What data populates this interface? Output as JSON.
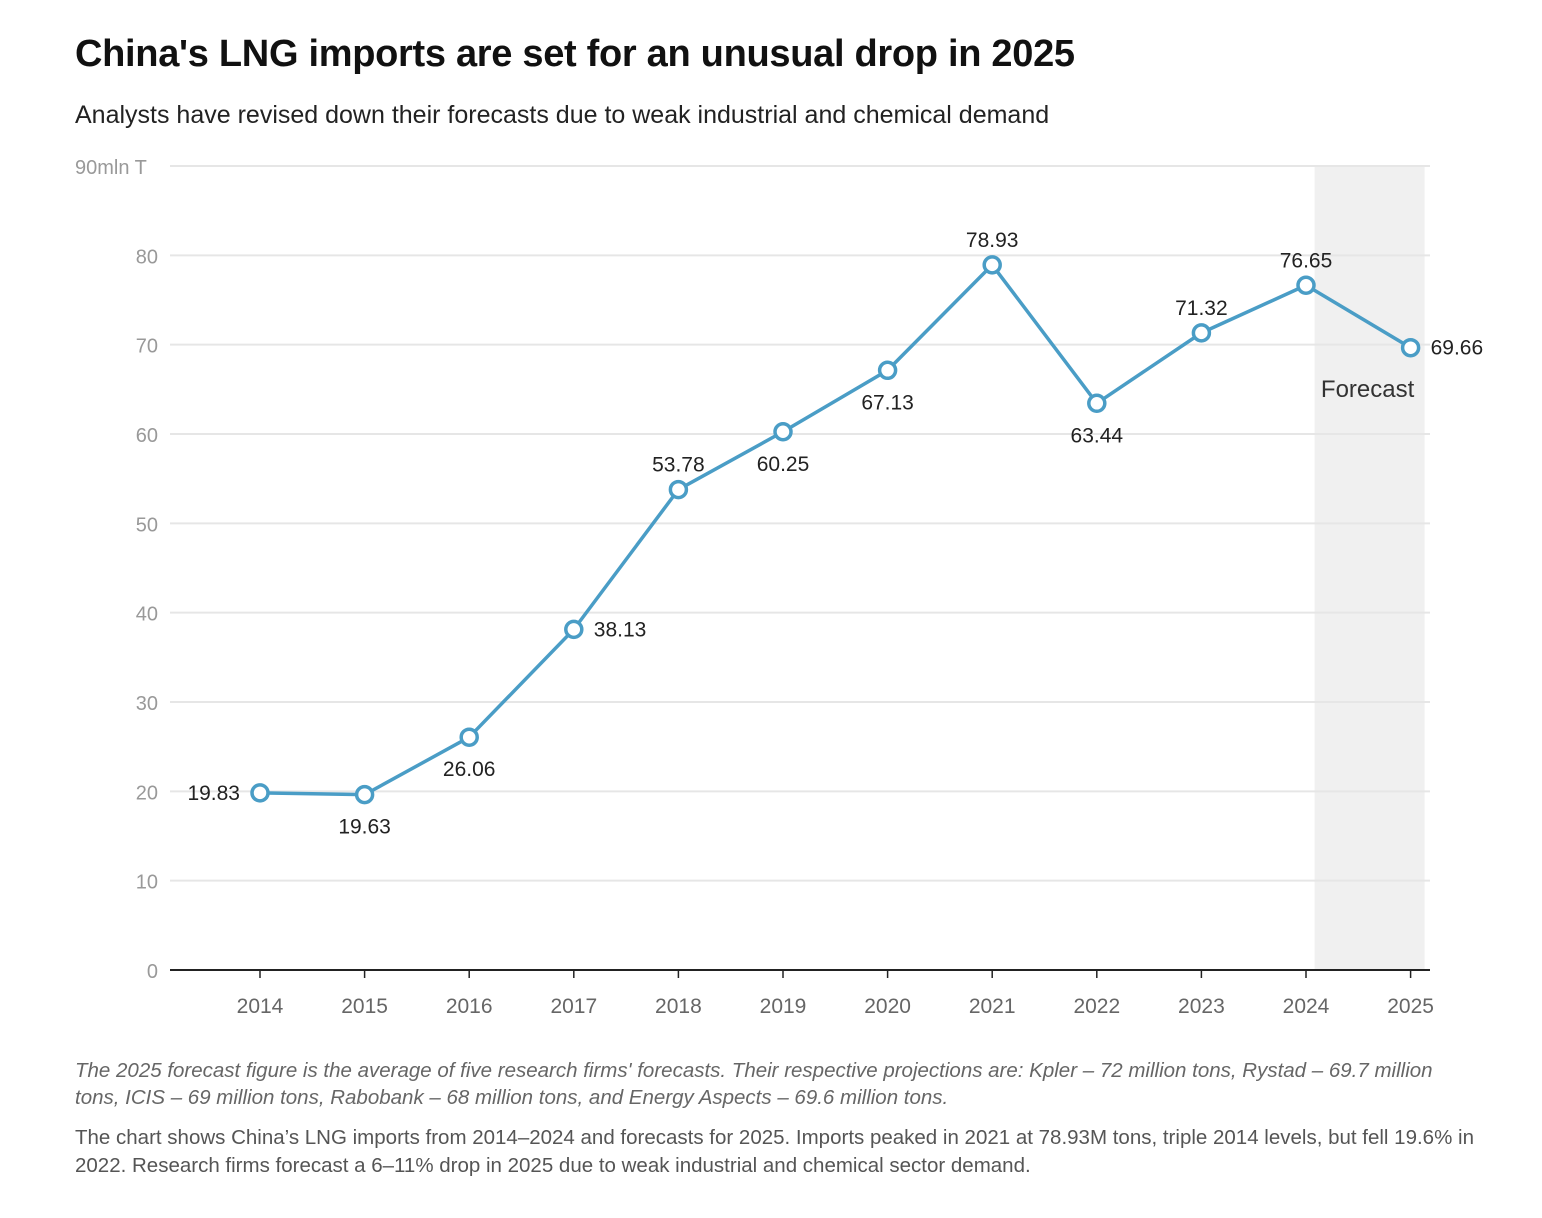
{
  "header": {
    "title": "China's LNG imports are set for an unusual drop in 2025",
    "subtitle": "Analysts have revised down their forecasts due to weak industrial and chemical demand"
  },
  "footer": {
    "note": "The 2025 forecast figure is the average of five research firms' forecasts. Their respective projections are: Kpler – 72 million tons, Rystad – 69.7 million tons, ICIS – 69 million tons, Rabobank – 68 million tons, and Energy Aspects – 69.6 million tons.",
    "description": "The chart shows China’s LNG imports from 2014–2024 and forecasts for 2025. Imports peaked in 2021 at 78.93M tons, triple 2014 levels, but fell 19.6% in 2022. Research firms forecast a 6–11% drop in 2025 due to weak industrial and chemical sector demand."
  },
  "chart_data": {
    "type": "line",
    "title": "China's LNG imports are set for an unusual drop in 2025",
    "subtitle": "Analysts have revised down their forecasts due to weak industrial and chemical demand",
    "ylabel": "",
    "y_top_tick_label": "90mln T",
    "y_ticks": [
      0,
      10,
      20,
      30,
      40,
      50,
      60,
      70,
      80,
      90
    ],
    "ylim": [
      0,
      90
    ],
    "x": [
      "2014",
      "2015",
      "2016",
      "2017",
      "2018",
      "2019",
      "2020",
      "2021",
      "2022",
      "2023",
      "2024",
      "2025"
    ],
    "series": [
      {
        "values": [
          19.83,
          19.63,
          26.06,
          38.13,
          53.78,
          60.25,
          67.13,
          78.93,
          63.44,
          71.32,
          76.65,
          69.66
        ],
        "labels": [
          "19.83",
          "19.63",
          "26.06",
          "38.13",
          "53.78",
          "60.25",
          "67.13",
          "78.93",
          "63.44",
          "71.32",
          "76.65",
          "69.66"
        ],
        "label_positions": [
          "left",
          "below",
          "below",
          "right",
          "above",
          "below",
          "below",
          "above",
          "below",
          "above",
          "above",
          "right"
        ],
        "color": "#4a9dc6"
      }
    ],
    "forecast_region": {
      "label": "Forecast",
      "x": "2025",
      "color": "#f0f0f0"
    },
    "grid": true,
    "colors": {
      "line": "#4a9dc6",
      "grid": "#e6e6e6",
      "axis": "#222222",
      "tick_text": "#999999",
      "x_tick_text": "#666666",
      "label_text": "#222222"
    }
  }
}
